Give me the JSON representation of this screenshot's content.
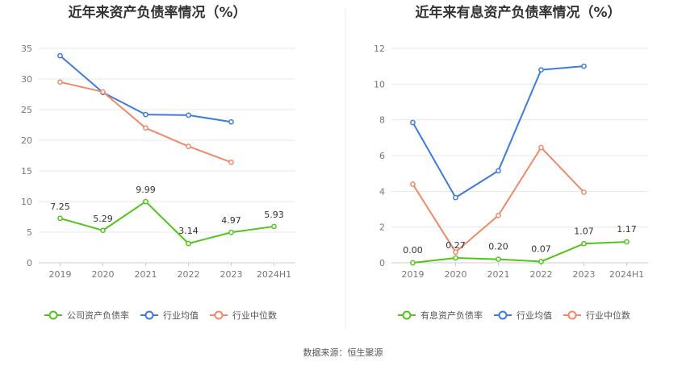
{
  "source": "数据来源：恒生聚源",
  "chart_data": [
    {
      "type": "line",
      "title": "近年来资产负债率情况（%）",
      "categories": [
        "2019",
        "2020",
        "2021",
        "2022",
        "2023",
        "2024H1"
      ],
      "ylim": [
        0,
        35
      ],
      "yticks": [
        0,
        5,
        10,
        15,
        20,
        25,
        30,
        35
      ],
      "grid": true,
      "legend_position": "bottom",
      "series": [
        {
          "name": "公司资产负债率",
          "color": "#52c41a",
          "values": [
            7.25,
            5.29,
            9.99,
            3.14,
            4.97,
            5.93
          ],
          "labels": [
            "7.25",
            "5.29",
            "9.99",
            "3.14",
            "4.97",
            "5.93"
          ]
        },
        {
          "name": "行业均值",
          "color": "#3d7bdc",
          "values": [
            33.8,
            27.8,
            24.2,
            24.1,
            23.0,
            null
          ]
        },
        {
          "name": "行业中位数",
          "color": "#f0886a",
          "values": [
            29.5,
            27.9,
            22.0,
            19.0,
            16.4,
            null
          ]
        }
      ]
    },
    {
      "type": "line",
      "title": "近年来有息资产负债率情况（%）",
      "categories": [
        "2019",
        "2020",
        "2021",
        "2022",
        "2023",
        "2024H1"
      ],
      "ylim": [
        0,
        12
      ],
      "yticks": [
        0,
        2,
        4,
        6,
        8,
        10,
        12
      ],
      "grid": true,
      "legend_position": "bottom",
      "series": [
        {
          "name": "有息资产负债率",
          "color": "#52c41a",
          "values": [
            0.0,
            0.27,
            0.2,
            0.07,
            1.07,
            1.17
          ],
          "labels": [
            "0.00",
            "0.27",
            "0.20",
            "0.07",
            "1.07",
            "1.17"
          ]
        },
        {
          "name": "行业均值",
          "color": "#3d7bdc",
          "values": [
            7.85,
            3.65,
            5.15,
            10.8,
            11.0,
            null
          ]
        },
        {
          "name": "行业中位数",
          "color": "#f0886a",
          "values": [
            4.4,
            0.6,
            2.65,
            6.45,
            3.95,
            null
          ]
        }
      ]
    }
  ]
}
